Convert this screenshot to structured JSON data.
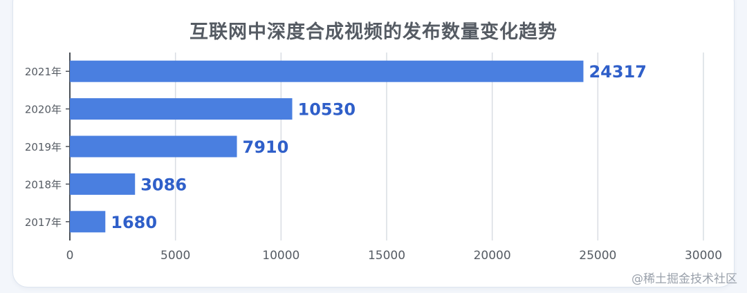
{
  "chart_data": {
    "type": "bar",
    "orientation": "horizontal",
    "title": "互联网中深度合成视频的发布数量变化趋势",
    "categories": [
      "2021年",
      "2020年",
      "2019年",
      "2018年",
      "2017年"
    ],
    "series": [
      {
        "values": [
          24317,
          10530,
          7910,
          3086,
          1680
        ]
      }
    ],
    "data_labels": [
      "24317",
      "10530",
      "7910",
      "3086",
      "1680"
    ],
    "xlim": [
      0,
      30000
    ],
    "x_ticks": [
      "0",
      "5000",
      "10000",
      "15000",
      "20000",
      "25000",
      "30000"
    ],
    "grid": true,
    "bar_color": "#4a7fe0",
    "label_color": "#2f5fc9"
  },
  "watermark": "@稀土掘金技术社区"
}
